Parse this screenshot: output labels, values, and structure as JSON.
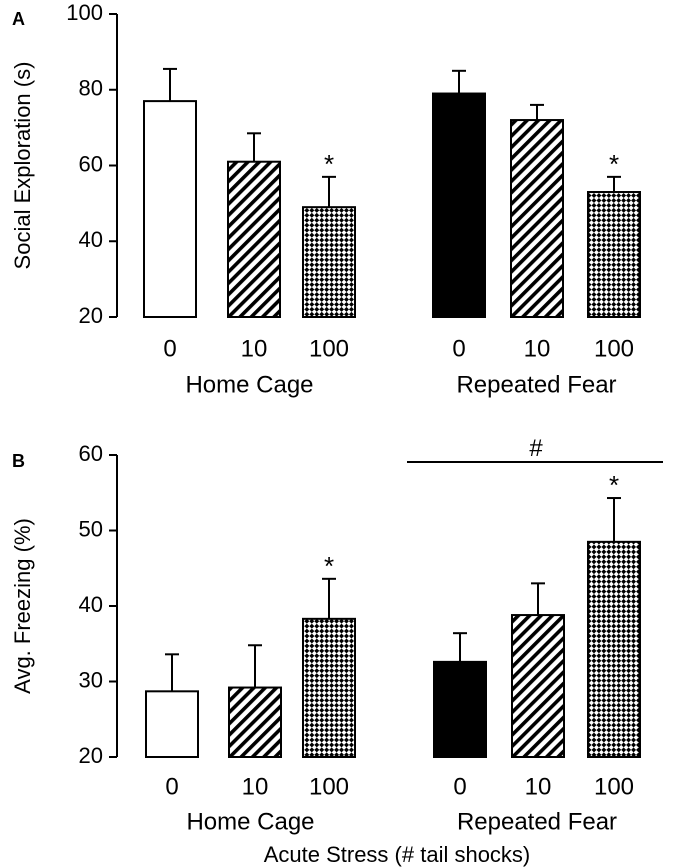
{
  "chart_data": [
    {
      "type": "bar",
      "panel_label": "A",
      "ylabel": "Social Exploration (s)",
      "ylim": [
        20,
        100
      ],
      "yticks": [
        20,
        40,
        60,
        80,
        100
      ],
      "groups": [
        {
          "name": "Home Cage",
          "bars": [
            {
              "category": "0",
              "value": 77,
              "error": 8.5,
              "fill": "white",
              "sig": ""
            },
            {
              "category": "10",
              "value": 61,
              "error": 7.5,
              "fill": "diagonal",
              "sig": ""
            },
            {
              "category": "100",
              "value": 49,
              "error": 8,
              "fill": "checker",
              "sig": "*"
            }
          ]
        },
        {
          "name": "Repeated Fear",
          "bars": [
            {
              "category": "0",
              "value": 79,
              "error": 6,
              "fill": "black",
              "sig": ""
            },
            {
              "category": "10",
              "value": 72,
              "error": 4,
              "fill": "diagonal",
              "sig": ""
            },
            {
              "category": "100",
              "value": 53,
              "error": 4,
              "fill": "checker",
              "sig": "*"
            }
          ]
        }
      ]
    },
    {
      "type": "bar",
      "panel_label": "B",
      "ylabel": "Avg. Freezing (%)",
      "xlabel": "Acute Stress (# tail shocks)",
      "ylim": [
        20,
        60
      ],
      "yticks": [
        20,
        30,
        40,
        50,
        60
      ],
      "group_annotation": "#",
      "groups": [
        {
          "name": "Home Cage",
          "bars": [
            {
              "category": "0",
              "value": 28.7,
              "error": 4.9,
              "fill": "white",
              "sig": ""
            },
            {
              "category": "10",
              "value": 29.2,
              "error": 5.6,
              "fill": "diagonal",
              "sig": ""
            },
            {
              "category": "100",
              "value": 38.3,
              "error": 5.3,
              "fill": "checker",
              "sig": "*"
            }
          ]
        },
        {
          "name": "Repeated Fear",
          "bars": [
            {
              "category": "0",
              "value": 32.6,
              "error": 3.8,
              "fill": "black",
              "sig": ""
            },
            {
              "category": "10",
              "value": 38.8,
              "error": 4.2,
              "fill": "diagonal",
              "sig": ""
            },
            {
              "category": "100",
              "value": 48.5,
              "error": 5.8,
              "fill": "checker",
              "sig": "*"
            }
          ]
        }
      ]
    }
  ]
}
